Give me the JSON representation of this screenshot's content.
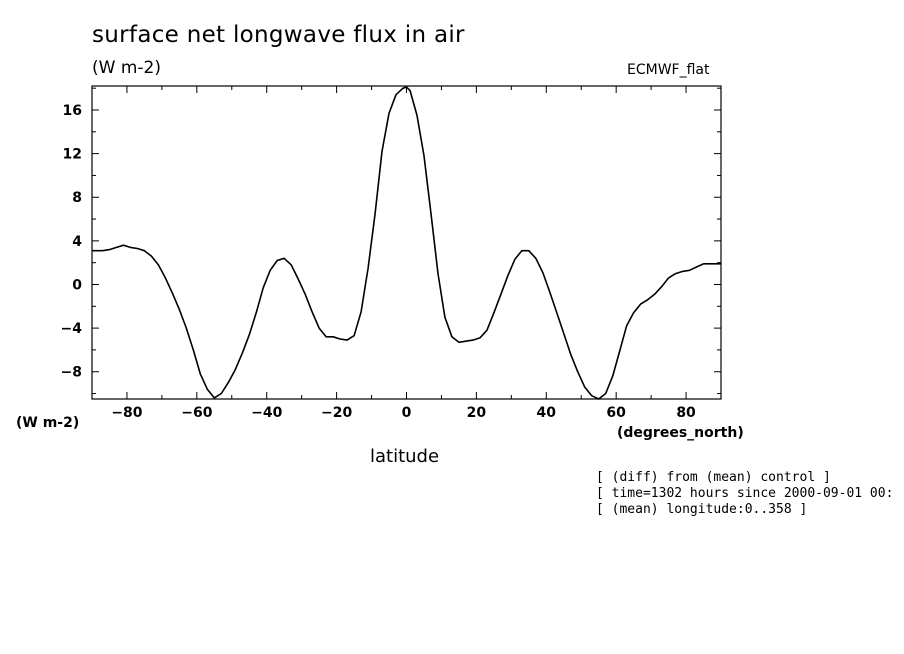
{
  "chart_data": {
    "type": "line",
    "title": "surface net longwave flux in air",
    "units": "(W m-2)",
    "source": "ECMWF_flat",
    "ylabel": "(W m-2)",
    "xlabel": "latitude",
    "xunits": "(degrees_north)",
    "xlim": [
      -90,
      90
    ],
    "ylim": [
      -10.5,
      18.2
    ],
    "xticks": [
      -80,
      -60,
      -40,
      -20,
      0,
      20,
      40,
      60,
      80
    ],
    "xtick_labels": [
      "-80",
      "-60",
      "-40",
      "-20",
      "0",
      "20",
      "40",
      "60",
      "80"
    ],
    "yticks": [
      -8,
      -4,
      0,
      4,
      8,
      12,
      16
    ],
    "ytick_labels": [
      "-8",
      "-4",
      "0",
      "4",
      "8",
      "12",
      "16"
    ],
    "grid": false,
    "series": [
      {
        "name": "surface net longwave flux in air",
        "x": [
          -90,
          -87,
          -85,
          -83,
          -81,
          -79,
          -77,
          -75,
          -73,
          -71,
          -69,
          -67,
          -65,
          -63,
          -61,
          -59,
          -57,
          -55,
          -53,
          -51,
          -49,
          -47,
          -45,
          -43,
          -41,
          -39,
          -37,
          -35,
          -33,
          -31,
          -29,
          -27,
          -25,
          -23,
          -21,
          -19,
          -17,
          -15,
          -13,
          -11,
          -9,
          -7,
          -5,
          -3,
          -1,
          0,
          1,
          3,
          5,
          7,
          9,
          11,
          13,
          15,
          17,
          19,
          21,
          23,
          25,
          27,
          29,
          31,
          33,
          35,
          37,
          39,
          41,
          43,
          45,
          47,
          49,
          51,
          53,
          55,
          57,
          59,
          61,
          63,
          65,
          67,
          69,
          71,
          73,
          75,
          77,
          79,
          81,
          83,
          85,
          87,
          90
        ],
        "values": [
          3.1,
          3.1,
          3.2,
          3.4,
          3.6,
          3.4,
          3.3,
          3.1,
          2.6,
          1.8,
          0.6,
          -0.8,
          -2.3,
          -4.0,
          -6.0,
          -8.2,
          -9.6,
          -10.4,
          -10.0,
          -9.0,
          -7.8,
          -6.3,
          -4.6,
          -2.6,
          -0.3,
          1.3,
          2.2,
          2.4,
          1.8,
          0.5,
          -0.9,
          -2.5,
          -4.0,
          -4.8,
          -4.8,
          -5.0,
          -5.1,
          -4.7,
          -2.5,
          1.5,
          6.5,
          12.2,
          15.7,
          17.4,
          18.0,
          18.1,
          17.8,
          15.5,
          11.8,
          6.5,
          1.0,
          -3.0,
          -4.8,
          -5.3,
          -5.2,
          -5.1,
          -4.9,
          -4.2,
          -2.6,
          -0.9,
          0.8,
          2.3,
          3.1,
          3.1,
          2.4,
          1.1,
          -0.7,
          -2.6,
          -4.5,
          -6.4,
          -8.0,
          -9.4,
          -10.2,
          -10.6,
          -10.0,
          -8.4,
          -6.1,
          -3.8,
          -2.6,
          -1.8,
          -1.4,
          -0.9,
          -0.2,
          0.6,
          1.0,
          1.2,
          1.3,
          1.6,
          1.9,
          1.9,
          1.9
        ]
      }
    ]
  },
  "info_lines": [
    "[ (diff) from (mean) control ]",
    "[ time=1302 hours since 2000-09-01 00:",
    "[ (mean) longitude:0..358 ]"
  ]
}
